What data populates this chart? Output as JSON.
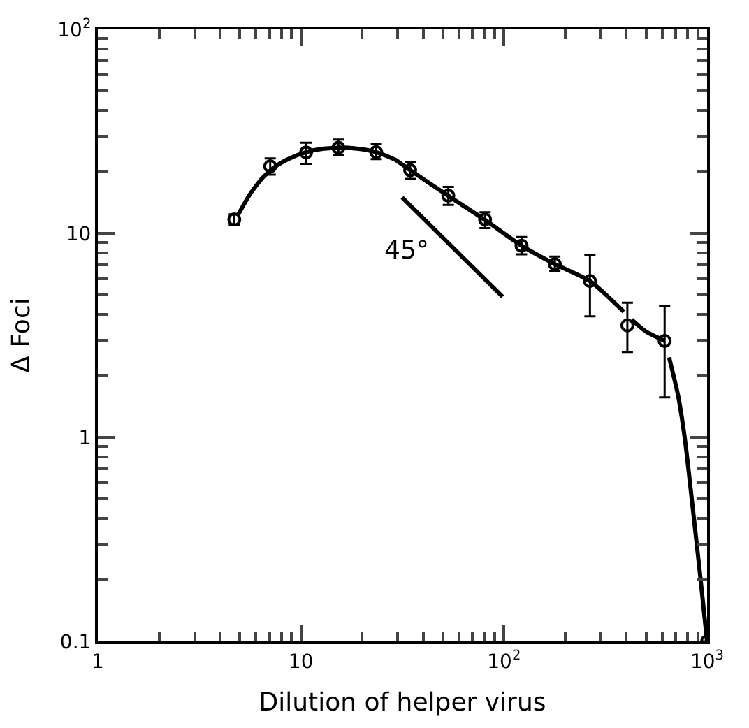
{
  "chart_data": {
    "type": "scatter",
    "xlabel": "Dilution of helper virus",
    "ylabel": "Δ Foci",
    "xlim": [
      1,
      1000
    ],
    "ylim": [
      0.1,
      100
    ],
    "xticks": [
      1,
      10,
      {
        "value": 100,
        "label": "10$^{2}$"
      },
      {
        "value": 1000,
        "label": "10$^{3}$"
      },
      {
        "value": 2,
        "label": null
      },
      {
        "value": 3,
        "label": null
      },
      {
        "value": 4,
        "label": null
      },
      {
        "value": 5,
        "label": null
      },
      {
        "value": 6,
        "label": null
      },
      {
        "value": 7,
        "label": null
      },
      {
        "value": 8,
        "label": null
      },
      {
        "value": 9,
        "label": null
      },
      {
        "value": 20,
        "label": null
      },
      {
        "value": 30,
        "label": null
      },
      {
        "value": 40,
        "label": null
      },
      {
        "value": 50,
        "label": null
      },
      {
        "value": 60,
        "label": null
      },
      {
        "value": 70,
        "label": null
      },
      {
        "value": 80,
        "label": null
      },
      {
        "value": 90,
        "label": null
      },
      {
        "value": 200,
        "label": null
      },
      {
        "value": 300,
        "label": null
      },
      {
        "value": 400,
        "label": null
      },
      {
        "value": 500,
        "label": null
      },
      {
        "value": 600,
        "label": null
      },
      {
        "value": 700,
        "label": null
      },
      {
        "value": 800,
        "label": null
      },
      {
        "value": 900,
        "label": null
      }
    ],
    "yticks": [
      0.1,
      1,
      10,
      {
        "value": 100,
        "label": "10$^{2}$"
      },
      {
        "value": 0.2,
        "label": null
      },
      {
        "value": 0.3,
        "label": null
      },
      {
        "value": 0.4,
        "label": null
      },
      {
        "value": 0.5,
        "label": null
      },
      {
        "value": 0.6,
        "label": null
      },
      {
        "value": 0.7,
        "label": null
      },
      {
        "value": 0.8,
        "label": null
      },
      {
        "value": 0.9,
        "label": null
      },
      {
        "value": 2,
        "label": null
      },
      {
        "value": 3,
        "label": null
      },
      {
        "value": 4,
        "label": null
      },
      {
        "value": 5,
        "label": null
      },
      {
        "value": 6,
        "label": null
      },
      {
        "value": 7,
        "label": null
      },
      {
        "value": 8,
        "label": null
      },
      {
        "value": 9,
        "label": null
      },
      {
        "value": 20,
        "label": null
      },
      {
        "value": 30,
        "label": null
      },
      {
        "value": 40,
        "label": null
      },
      {
        "value": 50,
        "label": null
      },
      {
        "value": 60,
        "label": null
      },
      {
        "value": 70,
        "label": null
      },
      {
        "value": 80,
        "label": null
      },
      {
        "value": 90,
        "label": null
      }
    ],
    "log": "xy",
    "annotations": [
      "45°"
    ],
    "series": [
      {
        "type": "line",
        "color": "#000000",
        "marker": "none",
        "line_style": "solid",
        "x": [
          4.9,
          5.6,
          6.5,
          7.5,
          8.8,
          10.6,
          13,
          15.3,
          19,
          23.5,
          29,
          34.5,
          53,
          80,
          122,
          178,
          265,
          389,
          null,
          425,
          500,
          618,
          null,
          650,
          720,
          778,
          850,
          920,
          1000
        ],
        "values": [
          12.3,
          15.5,
          18.8,
          21.3,
          23.3,
          25,
          26,
          26.3,
          26,
          25,
          23,
          20.4,
          15.3,
          11.7,
          8.7,
          7.07,
          5.84,
          4.13,
          null,
          3.78,
          3.3,
          2.97,
          null,
          2.47,
          1.6,
          0.975,
          0.45,
          0.22,
          0.1
        ]
      },
      {
        "type": "line",
        "color": "#000000",
        "marker": "none",
        "line_style": "solid",
        "x": [
          31.5,
          98.4
        ],
        "values": [
          15.0,
          4.89
        ]
      },
      {
        "color": "#000000",
        "marker": "circle",
        "x": [
          4.7,
          7.06,
          10.6,
          15.3,
          23.5,
          34.5,
          53.2,
          80.7,
          122,
          178,
          265,
          405,
          618,
          1000
        ],
        "values": [
          11.7,
          21.3,
          24.9,
          26.3,
          25.0,
          20.4,
          15.3,
          11.7,
          8.7,
          7.07,
          5.84,
          3.54,
          2.97,
          0.1
        ],
        "errors": [
          [
            11.0,
            12.4
          ],
          [
            19.4,
            23.3
          ],
          [
            21.9,
            27.8
          ],
          [
            24.2,
            28.8
          ],
          [
            23.1,
            27.4
          ],
          [
            18.5,
            22.4
          ],
          [
            13.8,
            16.9
          ],
          [
            10.6,
            12.7
          ],
          [
            7.9,
            9.6
          ],
          [
            6.5,
            7.7
          ],
          [
            3.92,
            7.87
          ],
          [
            2.62,
            4.57
          ],
          [
            1.57,
            4.42
          ],
          null
        ]
      }
    ]
  }
}
